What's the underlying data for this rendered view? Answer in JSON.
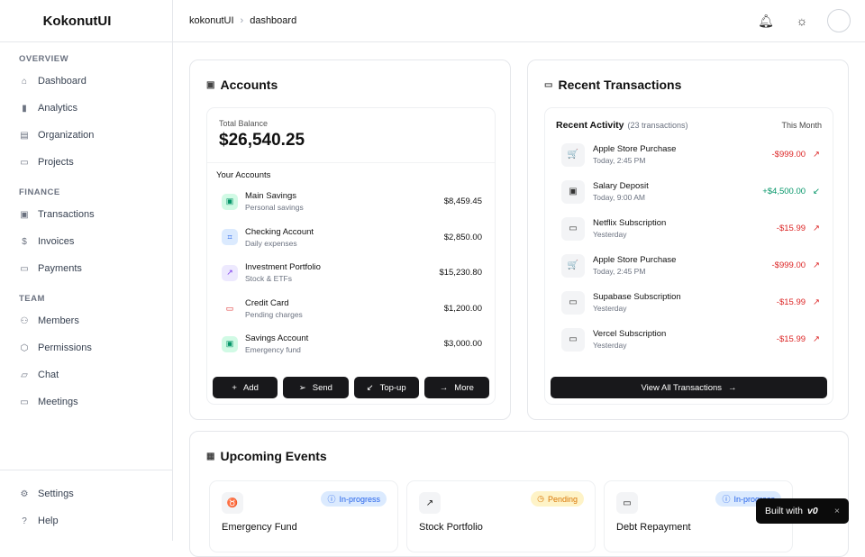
{
  "sidebar": {
    "brand": "KokonutUI",
    "sections": [
      {
        "title": "OVERVIEW",
        "items": [
          {
            "label": "Dashboard",
            "icon": "home-icon"
          },
          {
            "label": "Analytics",
            "icon": "bar-chart-icon"
          },
          {
            "label": "Organization",
            "icon": "building-icon"
          },
          {
            "label": "Projects",
            "icon": "folder-icon"
          }
        ]
      },
      {
        "title": "FINANCE",
        "items": [
          {
            "label": "Transactions",
            "icon": "wallet-icon"
          },
          {
            "label": "Invoices",
            "icon": "receipt-icon"
          },
          {
            "label": "Payments",
            "icon": "credit-card-icon"
          }
        ]
      },
      {
        "title": "TEAM",
        "items": [
          {
            "label": "Members",
            "icon": "users-icon"
          },
          {
            "label": "Permissions",
            "icon": "shield-icon"
          },
          {
            "label": "Chat",
            "icon": "chat-icon"
          },
          {
            "label": "Meetings",
            "icon": "video-icon"
          }
        ]
      }
    ],
    "bottom": [
      {
        "label": "Settings",
        "icon": "gear-icon"
      },
      {
        "label": "Help",
        "icon": "help-icon"
      }
    ]
  },
  "header": {
    "breadcrumb": [
      "kokonutUI",
      "dashboard"
    ]
  },
  "accounts": {
    "title": "Accounts",
    "total_label": "Total Balance",
    "total": "$26,540.25",
    "your_accounts": "Your Accounts",
    "items": [
      {
        "name": "Main Savings",
        "sub": "Personal savings",
        "amount": "$8,459.45",
        "color": "#059669",
        "bg": "#d1fae5",
        "glyph": "▣"
      },
      {
        "name": "Checking Account",
        "sub": "Daily expenses",
        "amount": "$2,850.00",
        "color": "#2563eb",
        "bg": "#dbeafe",
        "glyph": "⌗"
      },
      {
        "name": "Investment Portfolio",
        "sub": "Stock & ETFs",
        "amount": "$15,230.80",
        "color": "#7c3aed",
        "bg": "#ede9fe",
        "glyph": "↗"
      },
      {
        "name": "Credit Card",
        "sub": "Pending charges",
        "amount": "$1,200.00",
        "color": "#dc2626",
        "bg": "#fff",
        "glyph": "▭"
      },
      {
        "name": "Savings Account",
        "sub": "Emergency fund",
        "amount": "$3,000.00",
        "color": "#059669",
        "bg": "#d1fae5",
        "glyph": "▣"
      }
    ],
    "buttons": [
      {
        "label": "Add",
        "glyph": "+"
      },
      {
        "label": "Send",
        "glyph": "➢"
      },
      {
        "label": "Top-up",
        "glyph": "↙"
      },
      {
        "label": "More",
        "glyph": "→"
      }
    ]
  },
  "transactions": {
    "title": "Recent Transactions",
    "activity": "Recent Activity",
    "count": "(23 transactions)",
    "period": "This Month",
    "items": [
      {
        "name": "Apple Store Purchase",
        "time": "Today, 2:45 PM",
        "amount": "-$999.00",
        "type": "out",
        "glyph": "🛒"
      },
      {
        "name": "Salary Deposit",
        "time": "Today, 9:00 AM",
        "amount": "+$4,500.00",
        "type": "in",
        "glyph": "▣"
      },
      {
        "name": "Netflix Subscription",
        "time": "Yesterday",
        "amount": "-$15.99",
        "type": "out",
        "glyph": "▭"
      },
      {
        "name": "Apple Store Purchase",
        "time": "Today, 2:45 PM",
        "amount": "-$999.00",
        "type": "out",
        "glyph": "🛒"
      },
      {
        "name": "Supabase Subscription",
        "time": "Yesterday",
        "amount": "-$15.99",
        "type": "out",
        "glyph": "▭"
      },
      {
        "name": "Vercel Subscription",
        "time": "Yesterday",
        "amount": "-$15.99",
        "type": "out",
        "glyph": "▭"
      }
    ],
    "view_all": "View All Transactions"
  },
  "events": {
    "title": "Upcoming Events",
    "items": [
      {
        "title": "Emergency Fund",
        "status": "In-progress",
        "icon": "piggy-bank-icon",
        "glyph": "♉"
      },
      {
        "title": "Stock Portfolio",
        "status": "Pending",
        "icon": "trending-up-icon",
        "glyph": "↗"
      },
      {
        "title": "Debt Repayment",
        "status": "In-progress",
        "icon": "credit-card-icon",
        "glyph": "▭"
      }
    ]
  },
  "toast": {
    "label": "Built with",
    "logo": "v0",
    "close": "×"
  }
}
